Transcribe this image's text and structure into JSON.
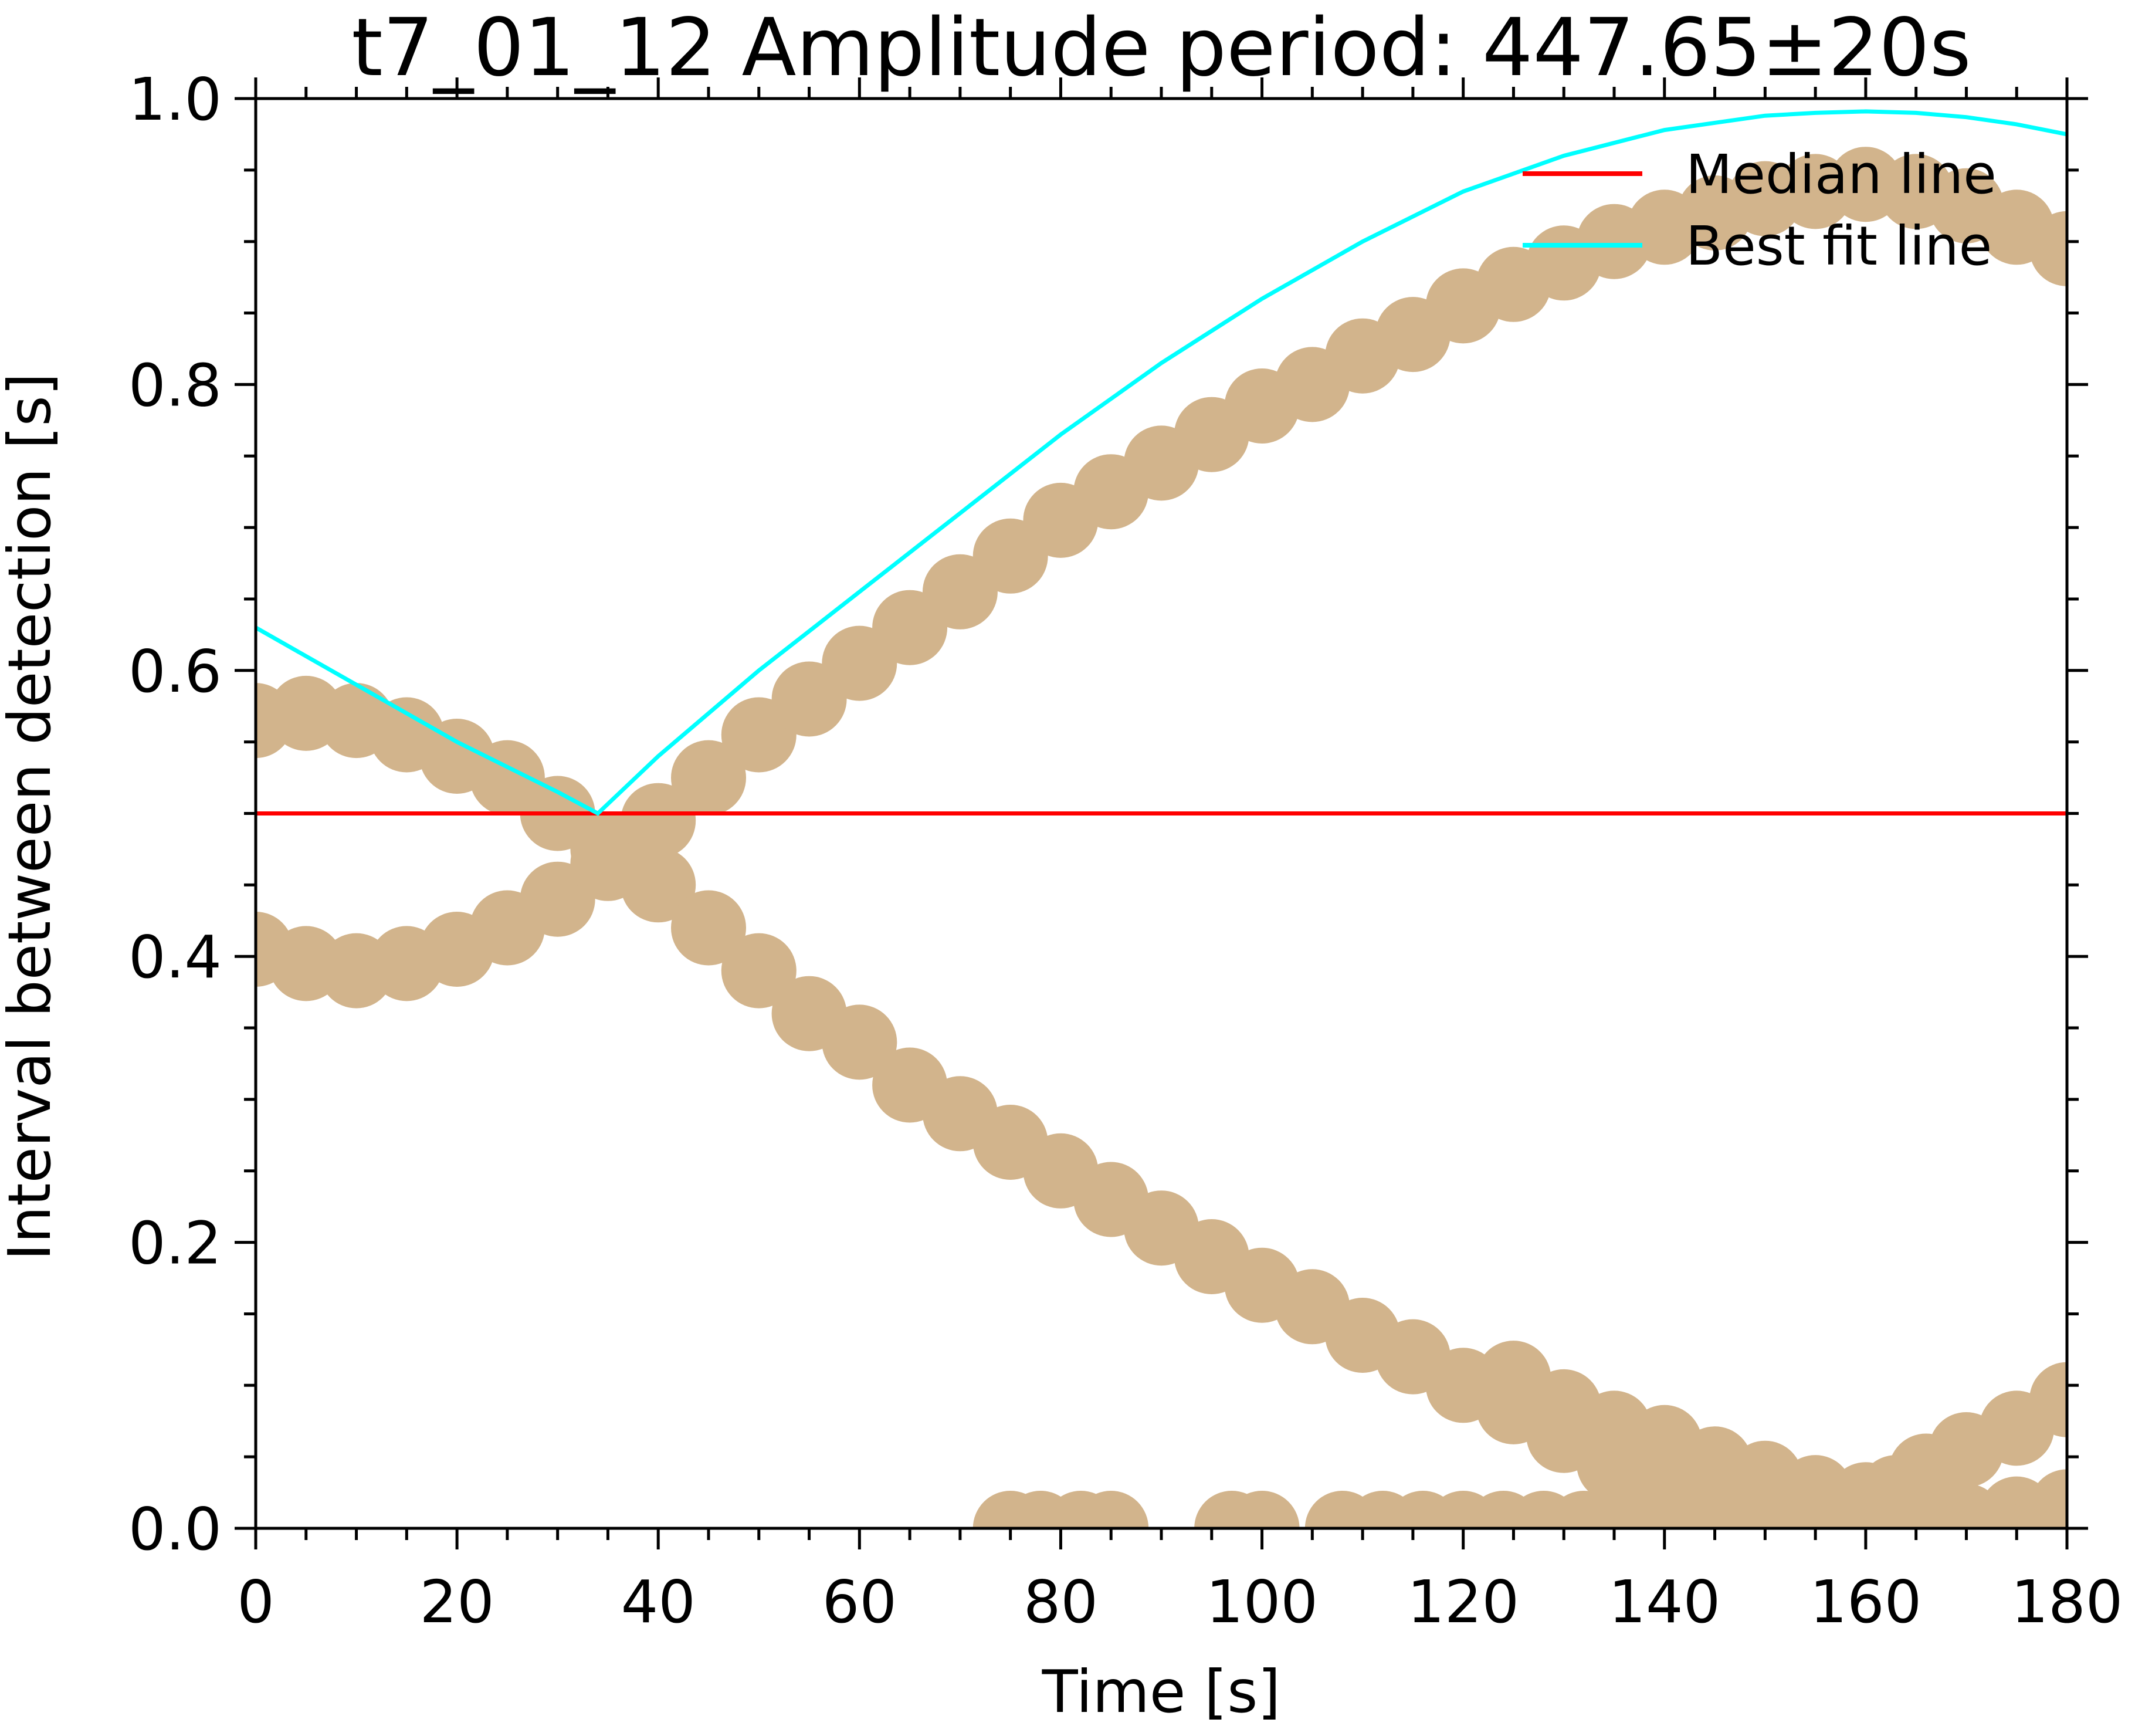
{
  "chart_data": {
    "type": "scatter",
    "title": "t7_01_12 Amplitude period: 447.65±20s",
    "xlabel": "Time [s]",
    "ylabel": "Interval between detection [s]",
    "xlim": [
      0,
      180
    ],
    "ylim": [
      0,
      1.0
    ],
    "xticks": [
      0,
      20,
      40,
      60,
      80,
      100,
      120,
      140,
      160,
      180
    ],
    "xtick_labels": [
      "0",
      "20",
      "40",
      "60",
      "80",
      "100",
      "120",
      "140",
      "160",
      "180"
    ],
    "yticks": [
      0.0,
      0.2,
      0.4,
      0.6,
      0.8,
      1.0
    ],
    "ytick_labels": [
      "0.0",
      "0.2",
      "0.4",
      "0.6",
      "0.8",
      "1.0"
    ],
    "grid": false,
    "legend_position": "top-right",
    "points_color": "#d2b48c",
    "series": [
      {
        "name": "",
        "kind": "scatter",
        "color": "#d2b48c",
        "points": [
          [
            0,
            0.565
          ],
          [
            5,
            0.57
          ],
          [
            10,
            0.565
          ],
          [
            15,
            0.555
          ],
          [
            20,
            0.54
          ],
          [
            25,
            0.525
          ],
          [
            30,
            0.5
          ],
          [
            35,
            0.475
          ],
          [
            40,
            0.45
          ],
          [
            45,
            0.42
          ],
          [
            50,
            0.39
          ],
          [
            55,
            0.36
          ],
          [
            60,
            0.34
          ],
          [
            65,
            0.31
          ],
          [
            70,
            0.29
          ],
          [
            75,
            0.27
          ],
          [
            80,
            0.25
          ],
          [
            85,
            0.23
          ],
          [
            90,
            0.21
          ],
          [
            95,
            0.19
          ],
          [
            100,
            0.17
          ],
          [
            105,
            0.155
          ],
          [
            110,
            0.135
          ],
          [
            115,
            0.12
          ],
          [
            120,
            0.1
          ],
          [
            125,
            0.085
          ],
          [
            130,
            0.065
          ],
          [
            135,
            0.045
          ],
          [
            140,
            0.03
          ],
          [
            145,
            0.015
          ],
          [
            150,
            0.005
          ],
          [
            155,
            0.0
          ],
          [
            160,
            0.0
          ],
          [
            165,
            0.0
          ],
          [
            170,
            0.005
          ],
          [
            175,
            0.01
          ],
          [
            180,
            0.015
          ],
          [
            0,
            0.405
          ],
          [
            5,
            0.395
          ],
          [
            10,
            0.39
          ],
          [
            15,
            0.395
          ],
          [
            20,
            0.405
          ],
          [
            25,
            0.42
          ],
          [
            30,
            0.44
          ],
          [
            35,
            0.465
          ],
          [
            40,
            0.495
          ],
          [
            45,
            0.525
          ],
          [
            50,
            0.555
          ],
          [
            55,
            0.58
          ],
          [
            60,
            0.605
          ],
          [
            65,
            0.63
          ],
          [
            70,
            0.655
          ],
          [
            75,
            0.68
          ],
          [
            80,
            0.705
          ],
          [
            85,
            0.725
          ],
          [
            90,
            0.745
          ],
          [
            95,
            0.765
          ],
          [
            100,
            0.785
          ],
          [
            105,
            0.8
          ],
          [
            110,
            0.82
          ],
          [
            115,
            0.835
          ],
          [
            120,
            0.855
          ],
          [
            125,
            0.87
          ],
          [
            130,
            0.885
          ],
          [
            135,
            0.9
          ],
          [
            140,
            0.91
          ],
          [
            145,
            0.92
          ],
          [
            150,
            0.93
          ],
          [
            155,
            0.935
          ],
          [
            160,
            0.94
          ],
          [
            165,
            0.935
          ],
          [
            170,
            0.925
          ],
          [
            175,
            0.91
          ],
          [
            180,
            0.895
          ],
          [
            125,
            0.105
          ],
          [
            130,
            0.085
          ],
          [
            135,
            0.07
          ],
          [
            140,
            0.06
          ],
          [
            145,
            0.045
          ],
          [
            150,
            0.035
          ],
          [
            155,
            0.025
          ],
          [
            160,
            0.02
          ],
          [
            163,
            0.025
          ],
          [
            166,
            0.04
          ],
          [
            170,
            0.055
          ],
          [
            175,
            0.07
          ],
          [
            180,
            0.09
          ],
          [
            75,
            0.0
          ],
          [
            78,
            0.0
          ],
          [
            82,
            0.0
          ],
          [
            85,
            0.0
          ],
          [
            97,
            0.0
          ],
          [
            100,
            0.0
          ],
          [
            108,
            0.0
          ],
          [
            112,
            0.0
          ],
          [
            116,
            0.0
          ],
          [
            120,
            0.0
          ],
          [
            124,
            0.0
          ],
          [
            128,
            0.0
          ],
          [
            132,
            0.0
          ],
          [
            136,
            0.0
          ],
          [
            140,
            0.0
          ],
          [
            145,
            0.0
          ],
          [
            150,
            0.0
          ],
          [
            168,
            0.0
          ],
          [
            172,
            0.0
          ]
        ]
      },
      {
        "name": "Median line",
        "kind": "line",
        "color": "#ff0000",
        "points": [
          [
            0,
            0.5
          ],
          [
            180,
            0.5
          ]
        ]
      },
      {
        "name": "Best fit line",
        "kind": "line",
        "color": "#00ffff",
        "points": [
          [
            0,
            0.63
          ],
          [
            10,
            0.59
          ],
          [
            20,
            0.55
          ],
          [
            30,
            0.515
          ],
          [
            34,
            0.5
          ],
          [
            40,
            0.54
          ],
          [
            50,
            0.6
          ],
          [
            60,
            0.655
          ],
          [
            70,
            0.71
          ],
          [
            80,
            0.765
          ],
          [
            90,
            0.815
          ],
          [
            100,
            0.86
          ],
          [
            110,
            0.9
          ],
          [
            120,
            0.935
          ],
          [
            130,
            0.96
          ],
          [
            140,
            0.978
          ],
          [
            150,
            0.988
          ],
          [
            155,
            0.99
          ],
          [
            160,
            0.991
          ],
          [
            165,
            0.99
          ],
          [
            170,
            0.987
          ],
          [
            175,
            0.982
          ],
          [
            180,
            0.975
          ]
        ]
      }
    ]
  }
}
